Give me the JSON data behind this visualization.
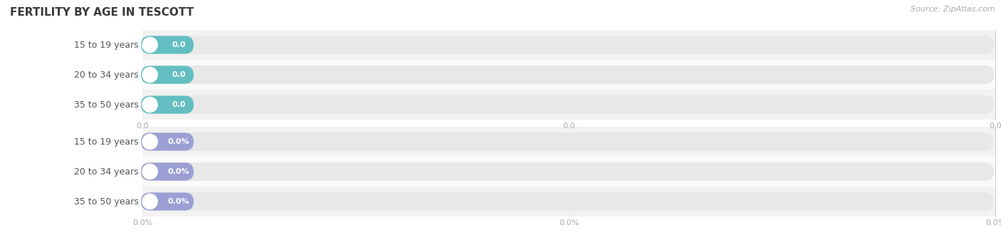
{
  "title": "FERTILITY BY AGE IN TESCOTT",
  "source_text": "Source: ZipAtlas.com",
  "group1_categories": [
    "15 to 19 years",
    "20 to 34 years",
    "35 to 50 years"
  ],
  "group2_categories": [
    "15 to 19 years",
    "20 to 34 years",
    "35 to 50 years"
  ],
  "group1_labels": [
    "0.0",
    "0.0",
    "0.0"
  ],
  "group2_labels": [
    "0.0%",
    "0.0%",
    "0.0%"
  ],
  "group1_color": "#62bec1",
  "group2_color": "#9b9fd4",
  "bar_bg_color": "#e8e8e8",
  "row_colors": [
    "#f2f2f2",
    "#fafafa"
  ],
  "bg_color": "#ffffff",
  "title_color": "#3a3a3a",
  "label_color": "#555555",
  "tick_color": "#aaaaaa",
  "source_color": "#aaaaaa",
  "value_text_color": "#ffffff",
  "title_fontsize": 11,
  "label_fontsize": 9,
  "value_fontsize": 8,
  "tick_fontsize": 8,
  "source_fontsize": 8,
  "group1_xticks": [
    "0.0",
    "0.0",
    "0.0"
  ],
  "group2_xticks": [
    "0.0%",
    "0.0%",
    "0.0%"
  ]
}
